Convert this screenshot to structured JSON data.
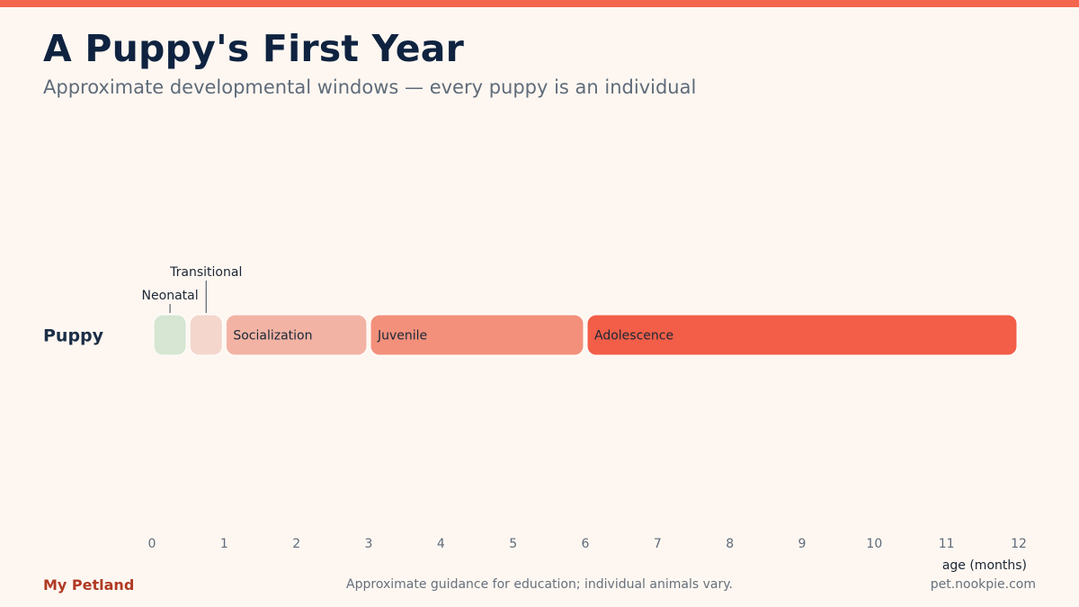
{
  "title": "A Puppy's First Year",
  "subtitle": "Approximate developmental windows — every puppy is an individual",
  "footer": {
    "brand": "My Petland",
    "note": "Approximate guidance for education; individual animals vary.",
    "url": "pet.nookpie.com"
  },
  "colors": {
    "accent": "#F4674E",
    "brand": "#B03A24",
    "title": "#0F2340",
    "subtitle": "#5F6B7A"
  },
  "chart_data": {
    "type": "timeline",
    "xlabel": "age (months)",
    "xlim": [
      0,
      12
    ],
    "xticks": [
      "0",
      "1",
      "2",
      "3",
      "4",
      "5",
      "6",
      "7",
      "8",
      "9",
      "10",
      "11",
      "12"
    ],
    "grid": false,
    "rows": [
      {
        "label": "Puppy",
        "segments": [
          {
            "name": "Neonatal",
            "start": 0,
            "end": 0.5,
            "color": "#D6E6D2",
            "label_position": "above"
          },
          {
            "name": "Transitional",
            "start": 0.5,
            "end": 1,
            "color": "#F4D6CC",
            "label_position": "above"
          },
          {
            "name": "Socialization",
            "start": 1,
            "end": 3,
            "color": "#F2B3A4",
            "label_position": "inside"
          },
          {
            "name": "Juvenile",
            "start": 3,
            "end": 6,
            "color": "#F3907B",
            "label_position": "inside"
          },
          {
            "name": "Adolescence",
            "start": 6,
            "end": 12,
            "color": "#F25E47",
            "label_position": "inside"
          }
        ]
      }
    ]
  }
}
